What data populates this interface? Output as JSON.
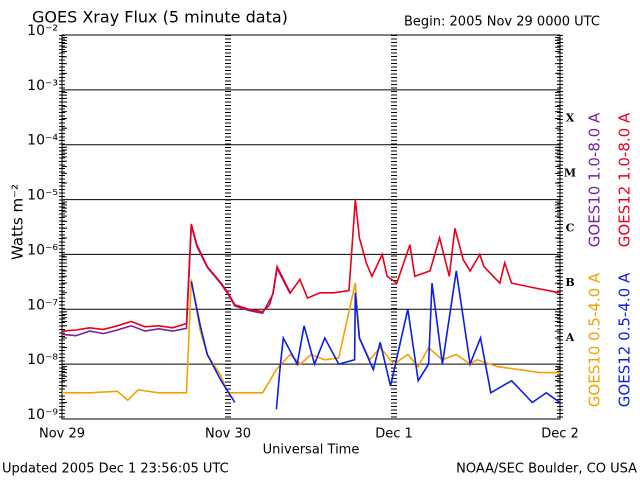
{
  "chart_data": {
    "type": "line",
    "title": "GOES Xray Flux (5 minute data)",
    "subtitle": "Begin:  2005 Nov 29 0000 UTC",
    "y_label": "Watts m⁻²",
    "x_label": "Universal Time",
    "footer_left": "Updated 2005 Dec  1 23:56:05 UTC",
    "footer_right": "NOAA/SEC Boulder, CO USA",
    "log_scale": true,
    "grid": true,
    "ylim": [
      1e-09,
      0.01
    ],
    "yticks": [
      {
        "value": 0.01,
        "label": "10⁻²"
      },
      {
        "value": 0.001,
        "label": "10⁻³"
      },
      {
        "value": 0.0001,
        "label": "10⁻⁴"
      },
      {
        "value": 1e-05,
        "label": "10⁻⁵"
      },
      {
        "value": 1e-06,
        "label": "10⁻⁶"
      },
      {
        "value": 1e-07,
        "label": "10⁻⁷"
      },
      {
        "value": 1e-08,
        "label": "10⁻⁸"
      },
      {
        "value": 1e-09,
        "label": "10⁻⁹"
      }
    ],
    "xlim": [
      0,
      72
    ],
    "xticks": [
      {
        "value": 0,
        "label": "Nov 29"
      },
      {
        "value": 24,
        "label": "Nov 30"
      },
      {
        "value": 48,
        "label": "Dec 1"
      },
      {
        "value": 72,
        "label": "Dec 2"
      }
    ],
    "class_labels": [
      {
        "value": 0.0003,
        "label": "X"
      },
      {
        "value": 3e-05,
        "label": "M"
      },
      {
        "value": 3e-06,
        "label": "C"
      },
      {
        "value": 3e-07,
        "label": "B"
      },
      {
        "value": 3e-08,
        "label": "A"
      }
    ],
    "series": [
      {
        "name": "GOES10 1.0-8.0 A",
        "color": "#7a1fa2",
        "legend_group": "upper",
        "x": [
          0,
          2,
          4,
          6,
          8,
          10,
          12,
          14,
          16,
          18,
          18.7,
          19.5,
          21,
          23,
          24,
          25,
          27,
          29,
          30.5,
          31.1,
          33
        ],
        "values": [
          3.5e-08,
          3.3e-08,
          4e-08,
          3.6e-08,
          4.2e-08,
          5e-08,
          4e-08,
          4.4e-08,
          4e-08,
          4.5e-08,
          3.4e-06,
          1.4e-06,
          5.8e-07,
          2.9e-07,
          1.9e-07,
          1.15e-07,
          9.5e-08,
          8.5e-08,
          1.9e-07,
          5.6e-07,
          1.9e-07
        ]
      },
      {
        "name": "GOES12 1.0-8.0 A",
        "color": "#e8001c",
        "legend_group": "upper",
        "x": [
          0,
          2,
          4,
          6,
          8,
          10,
          12,
          14,
          16,
          18,
          18.7,
          19.5,
          21,
          23,
          24,
          25,
          27,
          29,
          30,
          30.5,
          31.1,
          33,
          34.4,
          35.5,
          37.3,
          39.3,
          41.5,
          42.4,
          43,
          44,
          44.8,
          46.3,
          47,
          48.4,
          50.3,
          51,
          53.2,
          54.6,
          56,
          56.8,
          58,
          59,
          60.4,
          61,
          63.3,
          64,
          65,
          68,
          72
        ],
        "values": [
          4e-08,
          4.2e-08,
          4.6e-08,
          4.3e-08,
          5e-08,
          6e-08,
          4.8e-08,
          5e-08,
          4.6e-08,
          5.5e-08,
          3.6e-06,
          1.5e-06,
          6e-07,
          3e-07,
          2e-07,
          1.2e-07,
          1e-07,
          9e-08,
          1.2e-07,
          2e-07,
          6e-07,
          2e-07,
          3.5e-07,
          1.6e-07,
          2e-07,
          2e-07,
          2.2e-07,
          1e-05,
          2e-06,
          7e-07,
          4e-07,
          1e-06,
          4e-07,
          3e-07,
          1.5e-06,
          4e-07,
          5e-07,
          2e-06,
          4e-07,
          3e-06,
          8e-07,
          5e-07,
          1e-06,
          6e-07,
          3e-07,
          7e-07,
          3e-07,
          2.5e-07,
          2e-07
        ]
      },
      {
        "name": "GOES10 0.5-4.0 A",
        "color": "#f5a000",
        "legend_group": "lower",
        "x": [
          0,
          4,
          8,
          9.5,
          11,
          14,
          18,
          18.7,
          20,
          21,
          23,
          24,
          27,
          29,
          31,
          33,
          34.5,
          36,
          38,
          40,
          42.4,
          43,
          44.5,
          46,
          48,
          50,
          51.5,
          53,
          55,
          57,
          59,
          60,
          63,
          66,
          69,
          72
        ],
        "values": [
          3e-09,
          3e-09,
          3.2e-09,
          2.2e-09,
          3.4e-09,
          3e-09,
          3e-09,
          3.5e-07,
          4e-08,
          1.5e-08,
          6e-09,
          3e-09,
          3e-09,
          3e-09,
          8e-09,
          1.5e-08,
          1e-08,
          1.5e-08,
          1.2e-08,
          1.3e-08,
          3e-07,
          3e-08,
          1.2e-08,
          2e-08,
          1e-08,
          1.5e-08,
          9e-09,
          2e-08,
          1.2e-08,
          1.5e-08,
          1e-08,
          1.2e-08,
          9e-09,
          8e-09,
          7e-09,
          7e-09
        ]
      },
      {
        "name": "GOES12 0.5-4.0 A",
        "color": "#0a1ee6",
        "legend_group": "lower",
        "x": [
          18,
          18.7,
          20,
          21,
          23,
          25,
          26,
          31,
          31.5,
          32,
          34,
          35,
          36.5,
          38,
          40,
          42.3,
          42.4,
          43,
          45,
          46,
          47.5,
          50,
          51.5,
          53,
          53.5,
          55,
          57,
          59,
          60.5,
          62,
          65,
          68,
          70,
          72
        ],
        "values": [
          null,
          3.2e-07,
          5e-08,
          1.5e-08,
          5e-09,
          2e-09,
          null,
          1.5e-09,
          8e-09,
          3e-08,
          1e-08,
          5e-08,
          1e-08,
          3e-08,
          1e-08,
          1.2e-08,
          2e-07,
          3e-08,
          8e-09,
          2.5e-08,
          4e-09,
          1e-07,
          5e-09,
          1e-08,
          3e-07,
          1e-08,
          5e-07,
          1e-08,
          3e-08,
          3e-09,
          5e-09,
          2e-09,
          3e-09,
          2e-09
        ]
      }
    ]
  }
}
